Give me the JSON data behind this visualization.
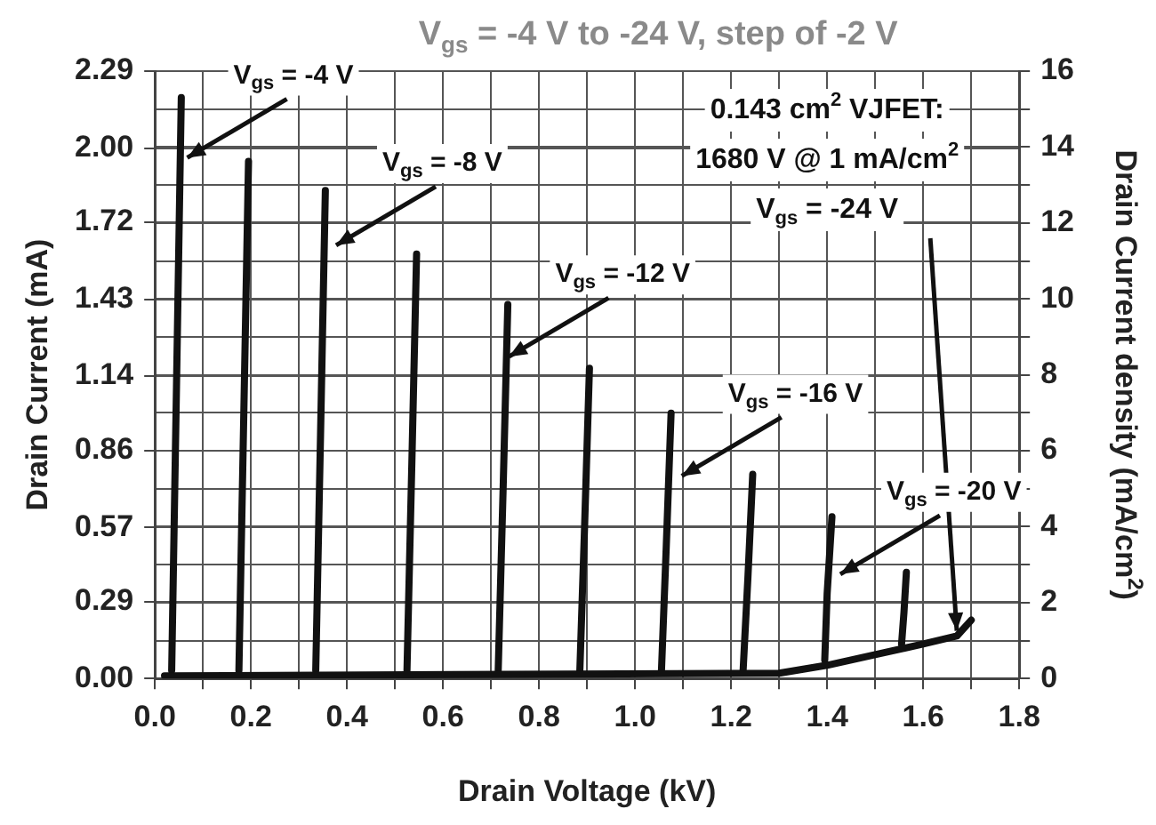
{
  "chart_data": {
    "type": "line",
    "title": "V$_{gs}$ = -4 V to -24 V, step of -2 V",
    "xlabel": "Drain Voltage (kV)",
    "ylabel": "Drain Current (mA)",
    "y2label": "Drain Current density (mA/cm$^{2}$)",
    "series": [
      {
        "color": "#111111",
        "x": [
          0.035,
          0.045,
          0.055
        ],
        "values": [
          0.03,
          1.1,
          2.19
        ]
      },
      {
        "color": "#111111",
        "x": [
          0.175,
          0.185,
          0.195
        ],
        "values": [
          0.03,
          0.98,
          1.95
        ]
      },
      {
        "color": "#111111",
        "x": [
          0.335,
          0.345,
          0.355
        ],
        "values": [
          0.03,
          0.92,
          1.84
        ]
      },
      {
        "color": "#111111",
        "x": [
          0.525,
          0.535,
          0.545
        ],
        "values": [
          0.03,
          0.8,
          1.6
        ]
      },
      {
        "color": "#111111",
        "x": [
          0.715,
          0.725,
          0.735
        ],
        "values": [
          0.03,
          0.7,
          1.41
        ]
      },
      {
        "color": "#111111",
        "x": [
          0.885,
          0.895,
          0.905
        ],
        "values": [
          0.03,
          0.58,
          1.17
        ]
      },
      {
        "color": "#111111",
        "x": [
          1.055,
          1.065,
          1.075
        ],
        "values": [
          0.03,
          0.5,
          1.0
        ]
      },
      {
        "color": "#111111",
        "x": [
          1.225,
          1.235,
          1.245
        ],
        "values": [
          0.03,
          0.38,
          0.77
        ]
      },
      {
        "color": "#111111",
        "x": [
          1.395,
          1.4,
          1.41
        ],
        "values": [
          0.07,
          0.32,
          0.61
        ]
      },
      {
        "color": "#111111",
        "x": [
          1.555,
          1.56,
          1.565
        ],
        "values": [
          0.13,
          0.25,
          0.4
        ]
      },
      {
        "color": "#111111",
        "x": [
          0.02,
          1.3,
          1.4,
          1.5,
          1.6,
          1.67,
          1.7
        ],
        "values": [
          0.01,
          0.02,
          0.05,
          0.09,
          0.13,
          0.16,
          0.22
        ]
      }
    ],
    "xlim": [
      0,
      1.8
    ],
    "xticks": [
      {
        "value": 0,
        "label": "0.0"
      },
      {
        "value": 0.1,
        "label": null
      },
      {
        "value": 0.2,
        "label": "0.2"
      },
      {
        "value": 0.3,
        "label": null
      },
      {
        "value": 0.4,
        "label": "0.4"
      },
      {
        "value": 0.5,
        "label": null
      },
      {
        "value": 0.6,
        "label": "0.6"
      },
      {
        "value": 0.7,
        "label": null
      },
      {
        "value": 0.8,
        "label": "0.8"
      },
      {
        "value": 0.9,
        "label": null
      },
      {
        "value": 1,
        "label": "1.0"
      },
      {
        "value": 1.1,
        "label": null
      },
      {
        "value": 1.2,
        "label": "1.2"
      },
      {
        "value": 1.3,
        "label": null
      },
      {
        "value": 1.4,
        "label": "1.4"
      },
      {
        "value": 1.5,
        "label": null
      },
      {
        "value": 1.6,
        "label": "1.6"
      },
      {
        "value": 1.7,
        "label": null
      },
      {
        "value": 1.8,
        "label": "1.8"
      }
    ],
    "ylim": [
      0,
      2.29
    ],
    "yticks": [
      {
        "value": 0,
        "label": "0.00"
      },
      {
        "value": 0.29,
        "label": "0.29"
      },
      {
        "value": 0.57,
        "label": "0.57"
      },
      {
        "value": 0.86,
        "label": "0.86"
      },
      {
        "value": 1.14,
        "label": "1.14"
      },
      {
        "value": 1.43,
        "label": "1.43"
      },
      {
        "value": 1.72,
        "label": "1.72"
      },
      {
        "value": 2,
        "label": "2.00"
      },
      {
        "value": 2.29,
        "label": "2.29"
      }
    ],
    "y2lim": [
      0,
      16
    ],
    "y2ticks": [
      0,
      {
        "value": 1,
        "label": null
      },
      2,
      {
        "value": 3,
        "label": null
      },
      4,
      {
        "value": 5,
        "label": null
      },
      6,
      {
        "value": 7,
        "label": null
      },
      8,
      {
        "value": 9,
        "label": null
      },
      10,
      {
        "value": 11,
        "label": null
      },
      12,
      {
        "value": 13,
        "label": null
      },
      14,
      {
        "value": 15,
        "label": null
      },
      16
    ],
    "grid": true,
    "legend": false,
    "line_style": "solid",
    "annotations": [
      {
        "text": "V$_{gs}$ = -4 V",
        "x": 0.06,
        "y": 1.95
      },
      {
        "text": "V$_{gs}$ = -8 V",
        "x": 0.37,
        "y": 1.62
      },
      {
        "text": "V$_{gs}$ = -12 V",
        "x": 0.73,
        "y": 1.2
      },
      {
        "text": "V$_{gs}$ = -16 V",
        "x": 1.09,
        "y": 0.75
      },
      {
        "text": "V$_{gs}$ = -20 V",
        "x": 1.42,
        "y": 0.38
      },
      "0.143 cm$^{2}$ VJFET:",
      "1680 V @ 1 mA/cm$^{2}$",
      {
        "text": "V$_{gs}$ = -24 V",
        "x": 1.67,
        "y": 0.18
      }
    ]
  }
}
